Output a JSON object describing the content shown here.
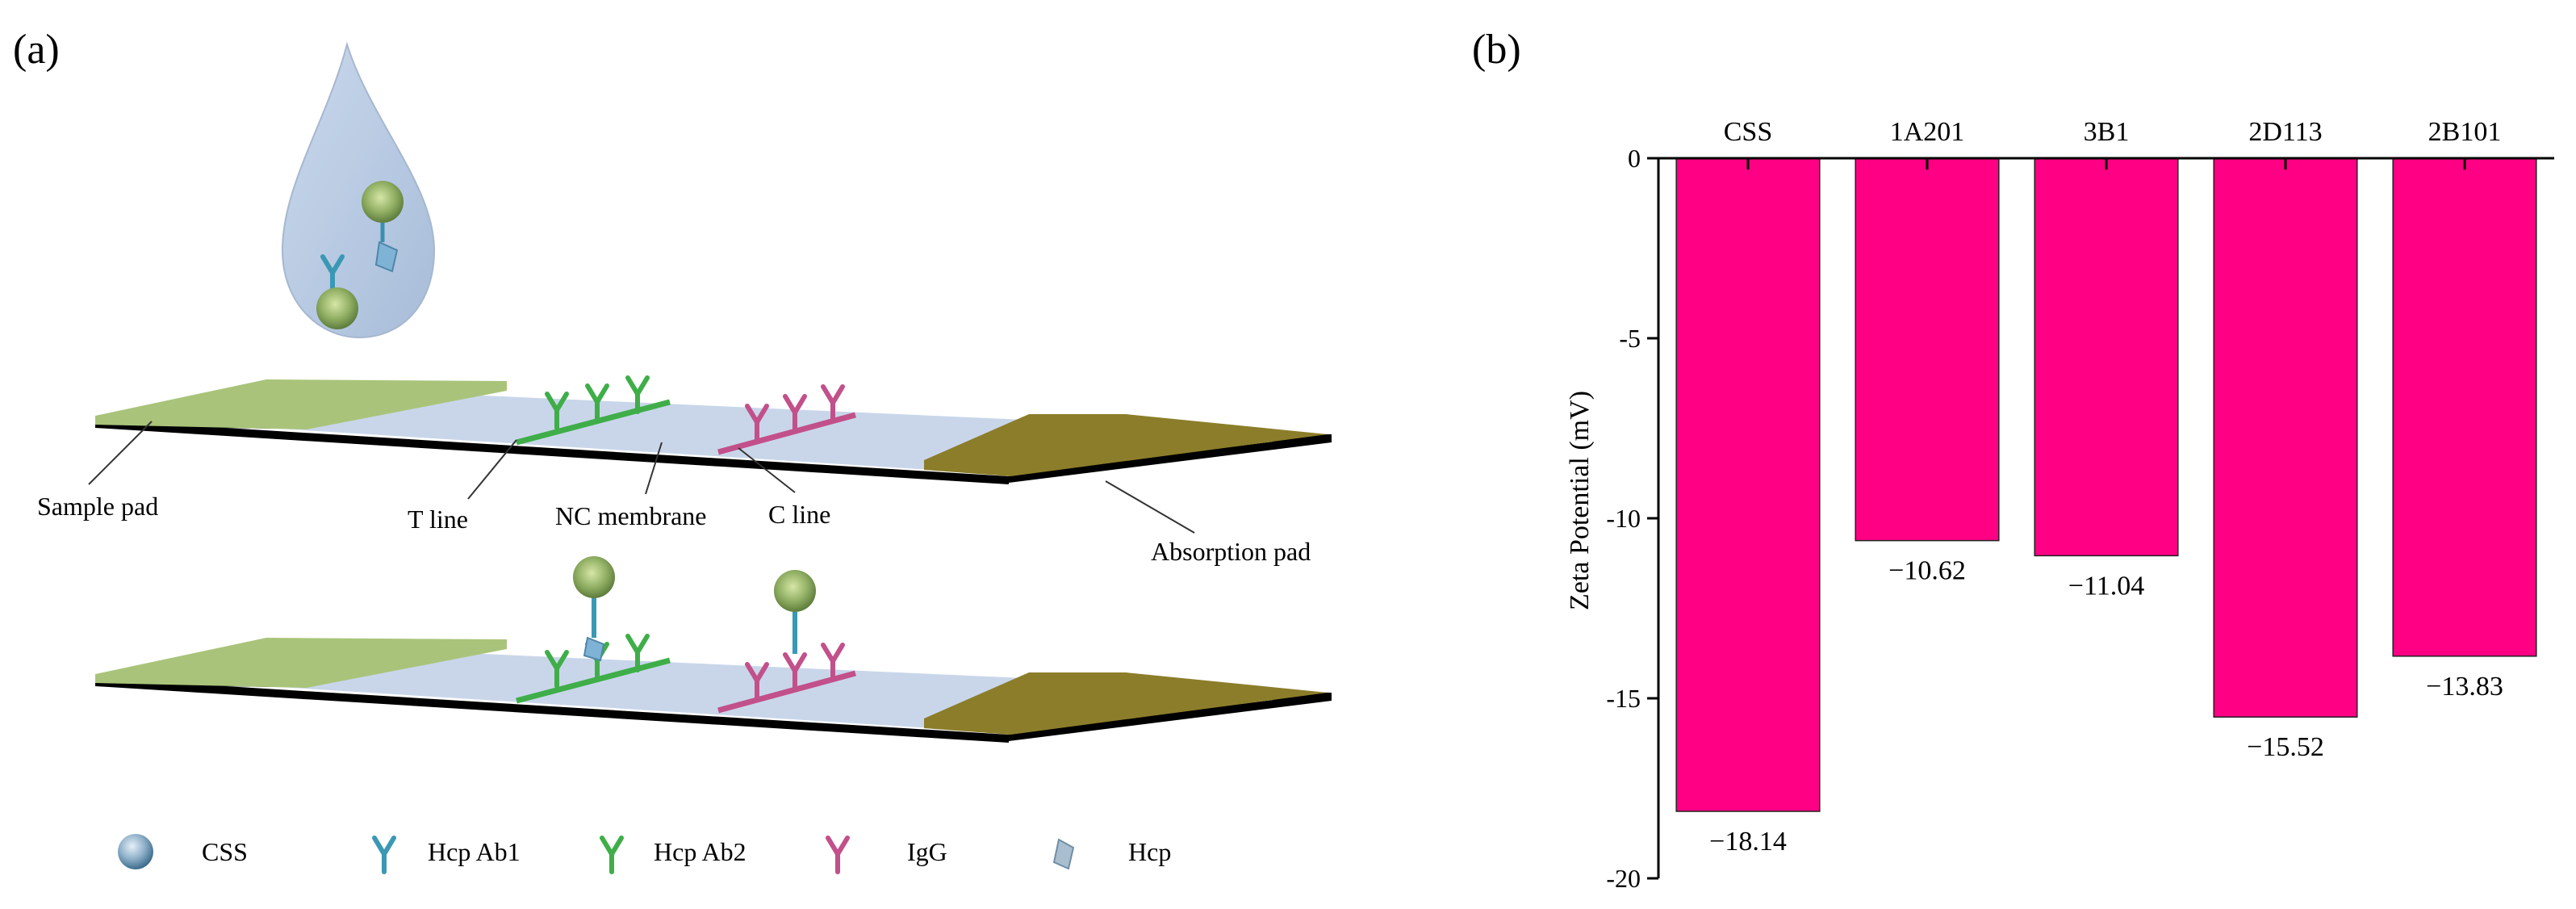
{
  "panel_a": {
    "label": "(a)",
    "strip_labels": {
      "sample_pad": "Sample pad",
      "t_line": "T line",
      "nc_membrane": "NC membrane",
      "c_line": "C line",
      "absorption_pad": "Absorption pad"
    },
    "legend": [
      {
        "icon": "css-particle-icon",
        "label": "CSS"
      },
      {
        "icon": "hcp-ab1-antibody-icon",
        "label": "Hcp Ab1"
      },
      {
        "icon": "hcp-ab2-antibody-icon",
        "label": "Hcp Ab2"
      },
      {
        "icon": "igg-antibody-icon",
        "label": "IgG"
      },
      {
        "icon": "hcp-antigen-icon",
        "label": "Hcp"
      }
    ],
    "colors": {
      "sample_pad": "#a9c47a",
      "membrane": "#c9d6ea",
      "absorption_pad": "#8c7d2a",
      "t_line": "#3fae49",
      "c_line": "#c2508a",
      "drop": "#a9bedb"
    }
  },
  "panel_b": {
    "label": "(b)"
  },
  "chart_data": {
    "type": "bar",
    "categories": [
      "CSS",
      "1A201",
      "3B1",
      "2D113",
      "2B101"
    ],
    "values": [
      -18.14,
      -10.62,
      -11.04,
      -15.52,
      -13.83
    ],
    "value_labels": [
      "−18.14",
      "−10.62",
      "−11.04",
      "−15.52",
      "−13.83"
    ],
    "ylabel": "Zeta Potential (mV)",
    "xlabel": "",
    "ylim": [
      -20,
      0
    ],
    "yticks": [
      0,
      -5,
      -10,
      -15,
      -20
    ],
    "ytick_labels": [
      "0",
      "-5",
      "-10",
      "-15",
      "-20"
    ],
    "bar_color": "#ff0084",
    "x_axis_position": "top",
    "grid": false
  }
}
